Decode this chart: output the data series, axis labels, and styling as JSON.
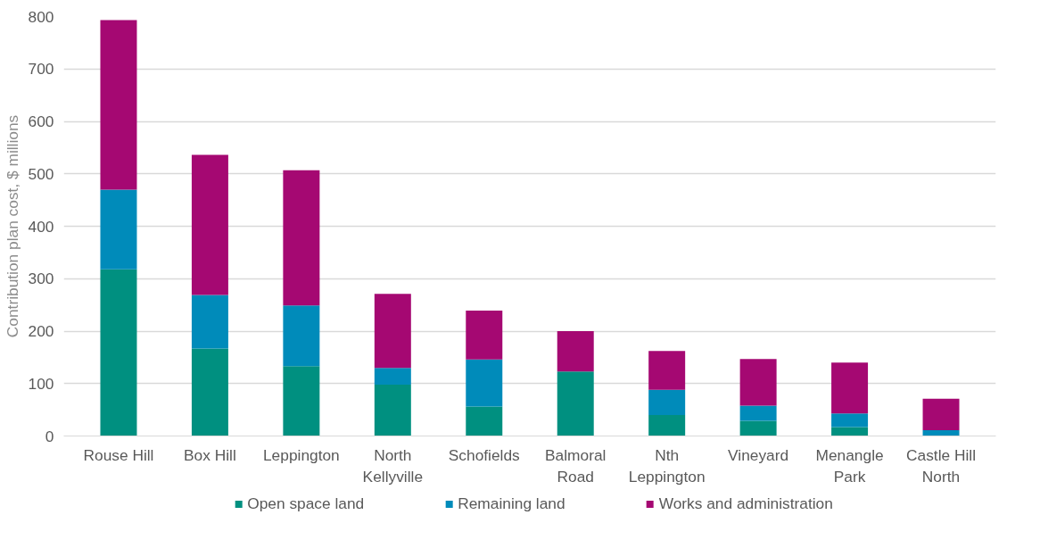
{
  "chart_data": {
    "type": "bar",
    "stacked": true,
    "ylabel": "Contribution plan cost, $ millions",
    "categories": [
      "Rouse Hill",
      "Box Hill",
      "Leppington",
      "North\nKellyville",
      "Schofields",
      "Balmoral\nRoad",
      "Nth\nLeppington",
      "Vineyard",
      "Menangle\nPark",
      "Castle Hill\nNorth"
    ],
    "series": [
      {
        "name": "Open space land",
        "color": "#009080",
        "values": [
          318,
          167,
          133,
          98,
          56,
          123,
          40,
          29,
          17,
          0
        ]
      },
      {
        "name": "Remaining land",
        "color": "#008bba",
        "values": [
          152,
          102,
          116,
          32,
          90,
          0,
          48,
          29,
          26,
          11
        ]
      },
      {
        "name": "Works and administration",
        "color": "#a50872",
        "values": [
          323,
          267,
          258,
          141,
          93,
          77,
          74,
          89,
          97,
          60
        ]
      }
    ],
    "ylim": [
      0,
      800
    ],
    "yticks": [
      0,
      100,
      200,
      300,
      400,
      500,
      600,
      700,
      800
    ],
    "grid": "y",
    "legend": "bottom"
  }
}
